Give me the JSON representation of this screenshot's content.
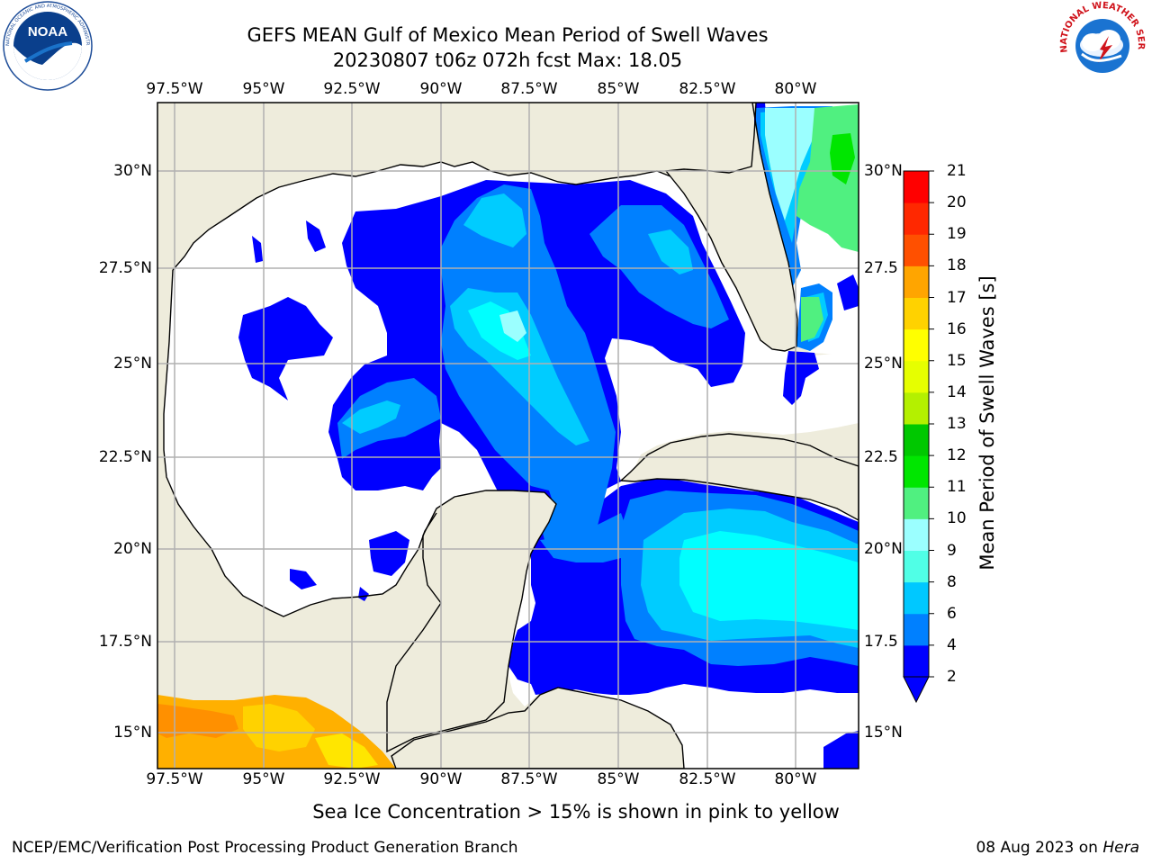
{
  "header": {
    "title": "GEFS MEAN Gulf of Mexico Mean Period of Swell Waves",
    "subtitle": "20230807 t06z 072h fcst   Max: 18.05"
  },
  "logos": {
    "left": "noaa-logo",
    "left_text": "NOAA",
    "left_ring": "NATIONAL OCEANIC AND ATMOSPHERIC ADMINISTRATION · U.S. DEPARTMENT OF COMMERCE",
    "right": "nws-logo",
    "right_ring": "NATIONAL WEATHER SERVICE"
  },
  "map": {
    "lon_labels": [
      "97.5°W",
      "95°W",
      "92.5°W",
      "90°W",
      "87.5°W",
      "85°W",
      "82.5°W",
      "80°W"
    ],
    "lat_labels_left": [
      "30°N",
      "27.5°N",
      "25°N",
      "22.5°N",
      "20°N",
      "17.5°N",
      "15°N"
    ],
    "lat_labels_right": [
      "30°N",
      "27.5",
      "25°N",
      "22.5",
      "20°N",
      "17.5",
      "15°N"
    ],
    "land_color": "#eeecdc",
    "grid_color": "#b0b0b0"
  },
  "colorbar": {
    "label": "Mean Period of Swell Waves [s]",
    "ticks": [
      "2",
      "4",
      "6",
      "8",
      "9",
      "10",
      "11",
      "12",
      "13",
      "14",
      "15",
      "16",
      "17",
      "18",
      "19",
      "20",
      "21"
    ],
    "colors": [
      "#0000ff",
      "#0080ff",
      "#00c8ff",
      "#00ffff",
      "#50ffe6",
      "#9bffff",
      "#50f080",
      "#00e600",
      "#00c800",
      "#60e000",
      "#b4f000",
      "#e6ff00",
      "#ffff00",
      "#ffd200",
      "#ffa500",
      "#ff8200",
      "#ff5000",
      "#ff2800",
      "#ff0000"
    ],
    "extend_color": "#0000ff"
  },
  "footer": {
    "note": "Sea Ice Concentration > 15% is shown in pink to yellow",
    "credit": "NCEP/EMC/Verification Post Processing Product Generation Branch",
    "date": "08 Aug 2023 on ",
    "host": "Hera"
  }
}
